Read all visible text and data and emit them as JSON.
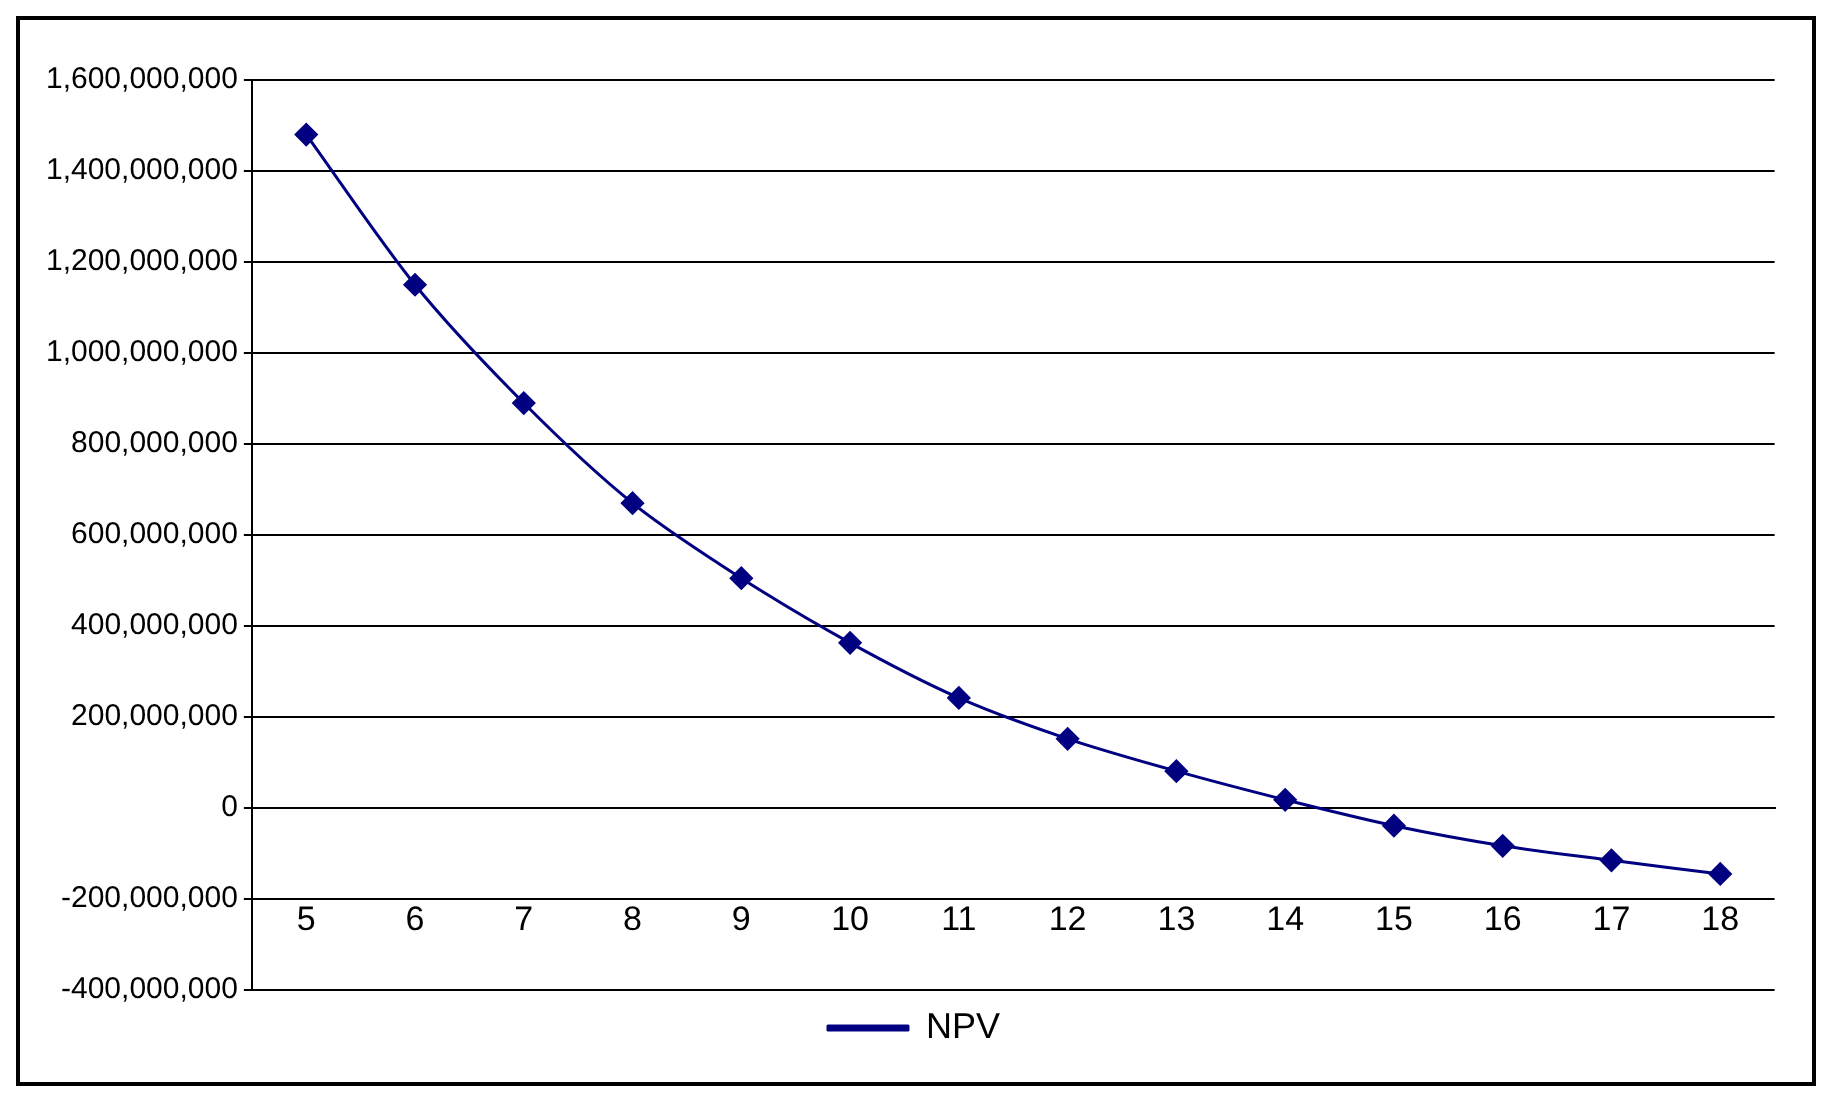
{
  "chart_data": {
    "type": "line",
    "categories": [
      "5",
      "6",
      "7",
      "8",
      "9",
      "10",
      "11",
      "12",
      "13",
      "14",
      "15",
      "16",
      "17",
      "18"
    ],
    "series": [
      {
        "name": "NPV",
        "color": "#000080",
        "values": [
          1480000000,
          1150000000,
          890000000,
          670000000,
          505000000,
          363000000,
          242000000,
          152000000,
          81000000,
          18000000,
          -39000000,
          -83000000,
          -115000000,
          -145000000
        ]
      }
    ],
    "ylim": [
      -400000000,
      1600000000
    ],
    "yticks": [
      {
        "value": -400000000,
        "label": "-400,000,000"
      },
      {
        "value": -200000000,
        "label": "-200,000,000"
      },
      {
        "value": 0,
        "label": "0"
      },
      {
        "value": 200000000,
        "label": "200,000,000"
      },
      {
        "value": 400000000,
        "label": "400,000,000"
      },
      {
        "value": 600000000,
        "label": "600,000,000"
      },
      {
        "value": 800000000,
        "label": "800,000,000"
      },
      {
        "value": 1000000000,
        "label": "1,000,000,000"
      },
      {
        "value": 1200000000,
        "label": "1,200,000,000"
      },
      {
        "value": 1400000000,
        "label": "1,400,000,000"
      },
      {
        "value": 1600000000,
        "label": "1,600,000,000"
      }
    ],
    "grid": "y",
    "legend": "bottom",
    "marker": "diamond",
    "line_style": "solid"
  }
}
